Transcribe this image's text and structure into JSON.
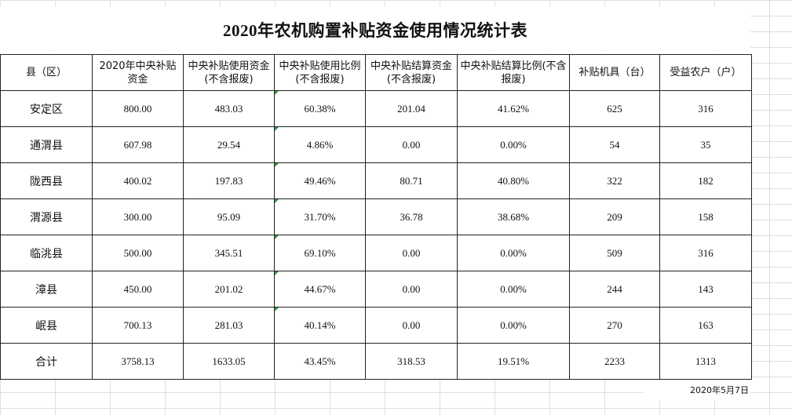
{
  "title": "2020年农机购置补贴资金使用情况统计表",
  "headers": [
    "县（区）",
    "2020年中央补贴资金",
    "中央补贴使用资金(不含报废)",
    "中央补贴使用比例(不含报废)",
    "中央补贴结算资金(不含报废)",
    "中央补贴结算比例(不含报废)",
    "补贴机具（台）",
    "受益农户（户）"
  ],
  "rows": [
    [
      "安定区",
      "800.00",
      "483.03",
      "60.38%",
      "201.04",
      "41.62%",
      "625",
      "316"
    ],
    [
      "通渭县",
      "607.98",
      "29.54",
      "4.86%",
      "0.00",
      "0.00%",
      "54",
      "35"
    ],
    [
      "陇西县",
      "400.02",
      "197.83",
      "49.46%",
      "80.71",
      "40.80%",
      "322",
      "182"
    ],
    [
      "渭源县",
      "300.00",
      "95.09",
      "31.70%",
      "36.78",
      "38.68%",
      "209",
      "158"
    ],
    [
      "临洮县",
      "500.00",
      "345.51",
      "69.10%",
      "0.00",
      "0.00%",
      "509",
      "316"
    ],
    [
      "漳县",
      "450.00",
      "201.02",
      "44.67%",
      "0.00",
      "0.00%",
      "244",
      "143"
    ],
    [
      "岷县",
      "700.13",
      "281.03",
      "40.14%",
      "0.00",
      "0.00%",
      "270",
      "163"
    ],
    [
      "合计",
      "3758.13",
      "1633.05",
      "43.45%",
      "318.53",
      "19.51%",
      "2233",
      "1313"
    ]
  ],
  "date": "2020年5月7日",
  "colors": {
    "grid": "#dedede",
    "border": "#222222",
    "comment_marker": "#1e9b3a"
  }
}
